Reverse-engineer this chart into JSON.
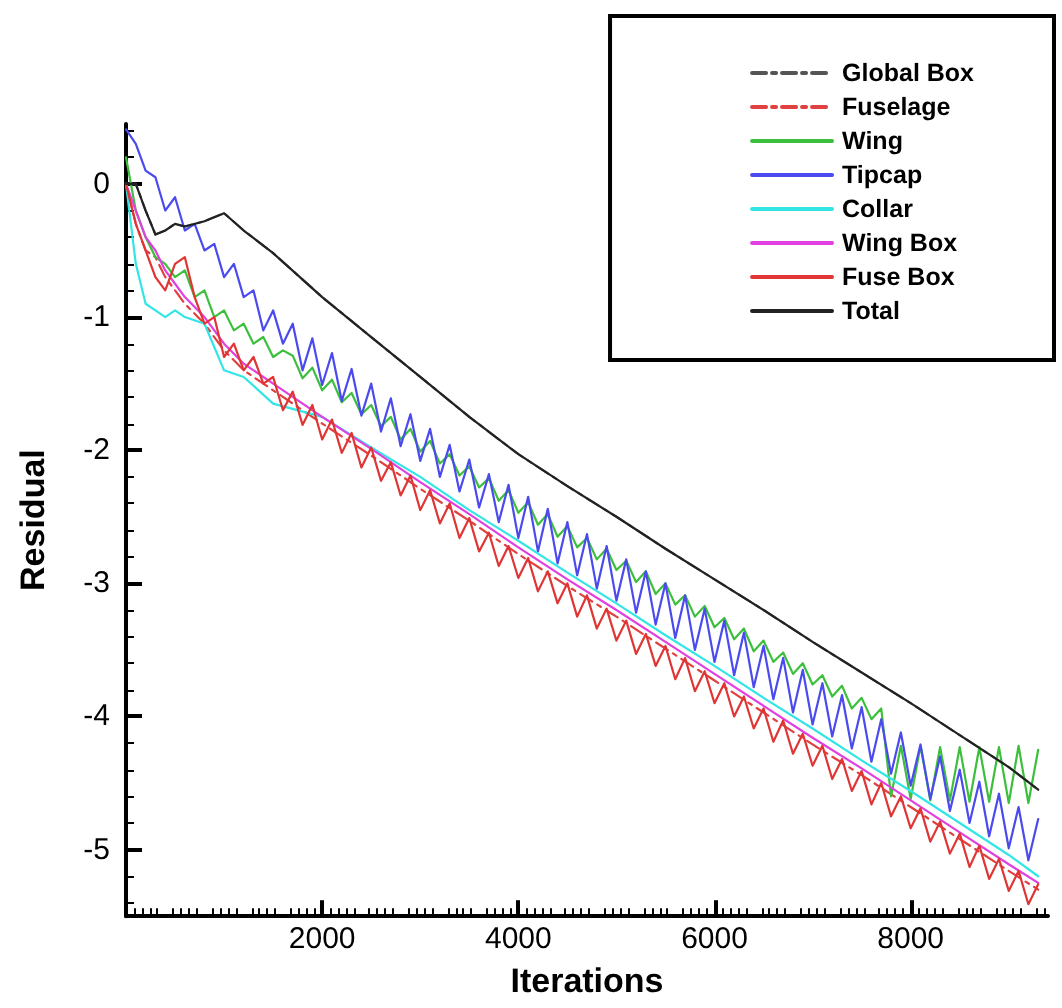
{
  "chart_data": {
    "type": "line",
    "xlabel": "Iterations",
    "ylabel": "Residual",
    "xlim": [
      0,
      9400
    ],
    "xticks": [
      2000,
      4000,
      6000,
      8000
    ],
    "ylim": [
      -5.5,
      0.45
    ],
    "yticks": [
      0,
      -1,
      -2,
      -3,
      -4,
      -5
    ],
    "grid": false,
    "legend": "top right",
    "marker": "none",
    "x": [
      0,
      100,
      200,
      300,
      400,
      500,
      600,
      700,
      800,
      900,
      1000,
      1100,
      1200,
      1300,
      1400,
      1500,
      1600,
      1700,
      1800,
      1900,
      2000,
      2100,
      2200,
      2300,
      2400,
      2500,
      2600,
      2700,
      2800,
      2900,
      3000,
      3100,
      3200,
      3300,
      3400,
      3500,
      3600,
      3700,
      3800,
      3900,
      4000,
      4100,
      4200,
      4300,
      4400,
      4500,
      4600,
      4700,
      4800,
      4900,
      5000,
      5100,
      5200,
      5300,
      5400,
      5500,
      5600,
      5700,
      5800,
      5900,
      6000,
      6100,
      6200,
      6300,
      6400,
      6500,
      6600,
      6700,
      6800,
      6900,
      7000,
      7100,
      7200,
      7300,
      7400,
      7500,
      7600,
      7700,
      7800,
      7900,
      8000,
      8100,
      8200,
      8300,
      8400,
      8500,
      8600,
      8700,
      8800,
      8900,
      9000,
      9100,
      9200,
      9300
    ],
    "series": [
      {
        "name": "Global Box",
        "color": "#555555",
        "line_style": "dashed",
        "x": [
          0,
          100,
          200,
          300,
          400,
          500,
          600,
          800,
          1000,
          1200,
          1500,
          2000,
          2500,
          3000,
          3500,
          4000,
          4500,
          5000,
          5500,
          6000,
          6500,
          7000,
          7500,
          8000,
          8500,
          9000,
          9300
        ],
        "values": [
          0,
          0,
          -0.2,
          -0.38,
          -0.35,
          -0.3,
          -0.32,
          -0.28,
          -0.22,
          -0.35,
          -0.52,
          -0.85,
          -1.15,
          -1.45,
          -1.75,
          -2.03,
          -2.27,
          -2.5,
          -2.74,
          -2.97,
          -3.2,
          -3.44,
          -3.67,
          -3.9,
          -4.14,
          -4.38,
          -4.55
        ]
      },
      {
        "name": "Fuselage",
        "color": "#e0403f",
        "line_style": "dashed",
        "x": [
          0,
          100,
          200,
          300,
          400,
          500,
          600,
          800,
          1000,
          1200,
          1500,
          2000,
          2500,
          3000,
          3500,
          4000,
          4500,
          5000,
          5500,
          6000,
          6500,
          7000,
          7500,
          8000,
          8500,
          9000,
          9300
        ],
        "values": [
          0,
          -0.3,
          -0.5,
          -0.55,
          -0.7,
          -0.8,
          -0.9,
          -1.05,
          -1.25,
          -1.4,
          -1.55,
          -1.8,
          -2.04,
          -2.29,
          -2.53,
          -2.78,
          -3.02,
          -3.25,
          -3.49,
          -3.73,
          -3.97,
          -4.21,
          -4.44,
          -4.68,
          -4.92,
          -5.16,
          -5.3
        ]
      },
      {
        "name": "Wing",
        "color": "#3cbf3c",
        "values": [
          0.2,
          -0.2,
          -0.4,
          -0.55,
          -0.6,
          -0.7,
          -0.65,
          -0.85,
          -0.8,
          -1.0,
          -0.95,
          -1.1,
          -1.05,
          -1.2,
          -1.15,
          -1.3,
          -1.25,
          -1.29,
          -1.46,
          -1.38,
          -1.55,
          -1.47,
          -1.64,
          -1.57,
          -1.73,
          -1.66,
          -1.82,
          -1.75,
          -1.92,
          -1.84,
          -2.01,
          -1.93,
          -2.1,
          -2.03,
          -2.19,
          -2.12,
          -2.28,
          -2.21,
          -2.38,
          -2.3,
          -2.47,
          -2.39,
          -2.56,
          -2.48,
          -2.65,
          -2.57,
          -2.73,
          -2.66,
          -2.82,
          -2.74,
          -2.9,
          -2.83,
          -2.99,
          -2.91,
          -3.08,
          -3.0,
          -3.16,
          -3.09,
          -3.25,
          -3.17,
          -3.33,
          -3.26,
          -3.42,
          -3.34,
          -3.51,
          -3.43,
          -3.59,
          -3.52,
          -3.68,
          -3.6,
          -3.76,
          -3.69,
          -3.85,
          -3.77,
          -3.94,
          -3.86,
          -4.02,
          -3.94,
          -4.6,
          -4.22,
          -4.62,
          -4.22,
          -4.63,
          -4.23,
          -4.63,
          -4.23,
          -4.64,
          -4.23,
          -4.64,
          -4.23,
          -4.65,
          -4.22,
          -4.65,
          -4.25
        ]
      },
      {
        "name": "Tipcap",
        "color": "#4a4aee",
        "values": [
          0.41,
          0.3,
          0.1,
          0.05,
          -0.2,
          -0.1,
          -0.35,
          -0.3,
          -0.5,
          -0.45,
          -0.7,
          -0.6,
          -0.85,
          -0.8,
          -1.1,
          -0.95,
          -1.2,
          -1.05,
          -1.4,
          -1.16,
          -1.51,
          -1.27,
          -1.63,
          -1.39,
          -1.74,
          -1.5,
          -1.86,
          -1.61,
          -1.97,
          -1.73,
          -2.08,
          -1.84,
          -2.2,
          -1.96,
          -2.31,
          -2.07,
          -2.43,
          -2.18,
          -2.54,
          -2.26,
          -2.66,
          -2.35,
          -2.76,
          -2.44,
          -2.85,
          -2.54,
          -2.94,
          -2.63,
          -3.04,
          -2.72,
          -3.13,
          -2.82,
          -3.22,
          -2.91,
          -3.31,
          -3.0,
          -3.41,
          -3.09,
          -3.5,
          -3.19,
          -3.59,
          -3.28,
          -3.69,
          -3.37,
          -3.78,
          -3.47,
          -3.87,
          -3.56,
          -3.97,
          -3.65,
          -4.06,
          -3.75,
          -4.15,
          -3.84,
          -4.24,
          -3.93,
          -4.34,
          -4.02,
          -4.43,
          -4.12,
          -4.52,
          -4.21,
          -4.62,
          -4.3,
          -4.71,
          -4.4,
          -4.8,
          -4.49,
          -4.9,
          -4.58,
          -4.99,
          -4.68,
          -5.08,
          -4.77
        ]
      },
      {
        "name": "Collar",
        "color": "#33e5e5",
        "x": [
          0,
          100,
          200,
          300,
          400,
          500,
          600,
          800,
          1000,
          1200,
          1500,
          2000,
          2500,
          3000,
          3500,
          4000,
          4500,
          5000,
          5500,
          6000,
          6500,
          7000,
          7500,
          8000,
          8500,
          9000,
          9300
        ],
        "values": [
          0,
          -0.6,
          -0.9,
          -0.95,
          -1.0,
          -0.95,
          -1.0,
          -1.05,
          -1.4,
          -1.45,
          -1.65,
          -1.75,
          -1.98,
          -2.2,
          -2.45,
          -2.68,
          -2.92,
          -3.15,
          -3.39,
          -3.62,
          -3.86,
          -4.09,
          -4.33,
          -4.56,
          -4.8,
          -5.04,
          -5.2
        ]
      },
      {
        "name": "Wing Box",
        "color": "#e040e0",
        "x": [
          0,
          100,
          200,
          300,
          400,
          500,
          600,
          800,
          1000,
          1200,
          1500,
          2000,
          2500,
          3000,
          3500,
          4000,
          4500,
          5000,
          5500,
          6000,
          6500,
          7000,
          7500,
          8000,
          8500,
          9000,
          9300
        ],
        "values": [
          0,
          -0.2,
          -0.4,
          -0.5,
          -0.65,
          -0.75,
          -0.85,
          -1.0,
          -1.2,
          -1.35,
          -1.5,
          -1.75,
          -1.99,
          -2.24,
          -2.48,
          -2.73,
          -2.97,
          -3.2,
          -3.44,
          -3.68,
          -3.92,
          -4.16,
          -4.39,
          -4.63,
          -4.87,
          -5.11,
          -5.25
        ]
      },
      {
        "name": "Fuse Box",
        "color": "#e03535",
        "values": [
          0,
          -0.3,
          -0.5,
          -0.7,
          -0.8,
          -0.6,
          -0.55,
          -0.85,
          -1.05,
          -1.0,
          -1.3,
          -1.2,
          -1.4,
          -1.3,
          -1.5,
          -1.45,
          -1.7,
          -1.56,
          -1.81,
          -1.66,
          -1.92,
          -1.77,
          -2.02,
          -1.87,
          -2.13,
          -1.98,
          -2.23,
          -2.09,
          -2.34,
          -2.19,
          -2.45,
          -2.3,
          -2.55,
          -2.4,
          -2.66,
          -2.51,
          -2.76,
          -2.62,
          -2.87,
          -2.72,
          -2.96,
          -2.81,
          -3.06,
          -2.91,
          -3.15,
          -3.0,
          -3.25,
          -3.09,
          -3.34,
          -3.19,
          -3.43,
          -3.28,
          -3.53,
          -3.38,
          -3.62,
          -3.47,
          -3.72,
          -3.56,
          -3.81,
          -3.66,
          -3.9,
          -3.75,
          -4.0,
          -3.85,
          -4.09,
          -3.94,
          -4.19,
          -4.03,
          -4.28,
          -4.13,
          -4.37,
          -4.22,
          -4.47,
          -4.32,
          -4.56,
          -4.41,
          -4.66,
          -4.5,
          -4.75,
          -4.6,
          -4.84,
          -4.69,
          -4.94,
          -4.79,
          -5.03,
          -4.88,
          -5.13,
          -4.97,
          -5.22,
          -5.07,
          -5.31,
          -5.16,
          -5.41,
          -5.26
        ]
      },
      {
        "name": "Total",
        "color": "#222222",
        "x": [
          0,
          100,
          200,
          300,
          400,
          500,
          600,
          800,
          1000,
          1200,
          1500,
          2000,
          2500,
          3000,
          3500,
          4000,
          4500,
          5000,
          5500,
          6000,
          6500,
          7000,
          7500,
          8000,
          8500,
          9000,
          9300
        ],
        "values": [
          0,
          0,
          -0.2,
          -0.38,
          -0.35,
          -0.3,
          -0.32,
          -0.28,
          -0.22,
          -0.35,
          -0.52,
          -0.85,
          -1.15,
          -1.45,
          -1.75,
          -2.03,
          -2.27,
          -2.5,
          -2.74,
          -2.97,
          -3.2,
          -3.44,
          -3.67,
          -3.9,
          -4.14,
          -4.38,
          -4.55
        ]
      }
    ]
  }
}
